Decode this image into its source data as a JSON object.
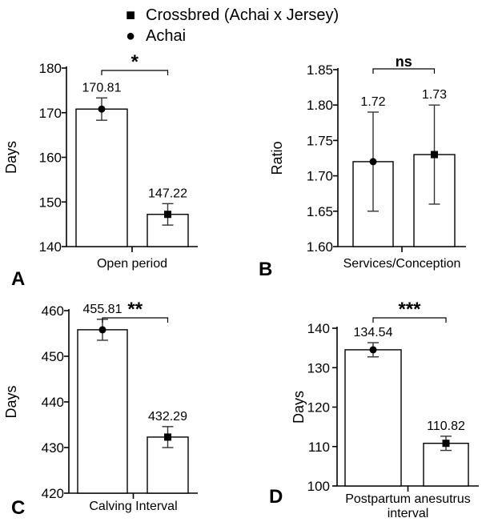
{
  "legend": {
    "entries": [
      {
        "label": "Crossbred (Achai x Jersey)",
        "marker": "square"
      },
      {
        "label": "Achai",
        "marker": "circle"
      }
    ]
  },
  "chart_data": [
    {
      "type": "bar",
      "panel_label": "A",
      "xlabel": "Open period",
      "ylabel": "Days",
      "ylim": [
        140,
        180
      ],
      "yticks": [
        "140",
        "150",
        "160",
        "170",
        "180"
      ],
      "categories": [
        "Achai",
        "Crossbred (Achai x Jersey)"
      ],
      "values": [
        170.81,
        147.22
      ],
      "value_labels": [
        "170.81",
        "147.22"
      ],
      "errors": [
        2.5,
        2.4
      ],
      "markers": [
        "circle",
        "square"
      ],
      "significance": "*"
    },
    {
      "type": "bar",
      "panel_label": "B",
      "xlabel": "Services/Conception",
      "ylabel": "Ratio",
      "ylim": [
        1.6,
        1.85
      ],
      "yticks": [
        "1.60",
        "1.65",
        "1.70",
        "1.75",
        "1.80",
        "1.85"
      ],
      "categories": [
        "Achai",
        "Crossbred (Achai x Jersey)"
      ],
      "values": [
        1.72,
        1.73
      ],
      "value_labels": [
        "1.72",
        "1.73"
      ],
      "errors": [
        0.07,
        0.07
      ],
      "markers": [
        "circle",
        "square"
      ],
      "significance": "ns"
    },
    {
      "type": "bar",
      "panel_label": "C",
      "xlabel": "Calving Interval",
      "ylabel": "Days",
      "ylim": [
        420,
        460
      ],
      "yticks": [
        "420",
        "430",
        "440",
        "450",
        "460"
      ],
      "categories": [
        "Achai",
        "Crossbred (Achai x Jersey)"
      ],
      "values": [
        455.81,
        432.29
      ],
      "value_labels": [
        "455.81",
        "432.29"
      ],
      "errors": [
        2.3,
        2.3
      ],
      "markers": [
        "circle",
        "square"
      ],
      "significance": "**"
    },
    {
      "type": "bar",
      "panel_label": "D",
      "xlabel": "Postpartum anesutrus interval",
      "ylabel": "Days",
      "ylim": [
        100,
        140
      ],
      "yticks": [
        "100",
        "110",
        "120",
        "130",
        "140"
      ],
      "categories": [
        "Achai",
        "Crossbred (Achai x Jersey)"
      ],
      "values": [
        134.54,
        110.82
      ],
      "value_labels": [
        "134.54",
        "110.82"
      ],
      "errors": [
        1.8,
        1.8
      ],
      "markers": [
        "circle",
        "square"
      ],
      "significance": "***"
    }
  ]
}
